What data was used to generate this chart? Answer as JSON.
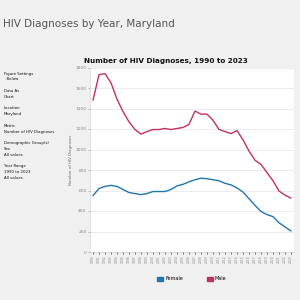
{
  "title_top": "HIV Diagnoses by Year, Maryland",
  "chart_title": "Number of HIV Diagnoses, 1990 to 2023",
  "ylabel": "Number of HIV Diagnoses",
  "years": [
    1990,
    1991,
    1992,
    1993,
    1994,
    1995,
    1996,
    1997,
    1998,
    1999,
    2000,
    2001,
    2002,
    2003,
    2004,
    2005,
    2006,
    2007,
    2008,
    2009,
    2010,
    2011,
    2012,
    2013,
    2014,
    2015,
    2016,
    2017,
    2018,
    2019,
    2020,
    2021,
    2022,
    2023
  ],
  "female_values": [
    550,
    620,
    640,
    650,
    640,
    610,
    580,
    570,
    560,
    570,
    590,
    590,
    590,
    610,
    645,
    660,
    685,
    705,
    720,
    715,
    705,
    695,
    670,
    655,
    625,
    585,
    520,
    455,
    395,
    365,
    345,
    285,
    245,
    205
  ],
  "male_values": [
    1480,
    1730,
    1740,
    1650,
    1490,
    1370,
    1270,
    1195,
    1150,
    1175,
    1195,
    1195,
    1205,
    1195,
    1205,
    1215,
    1245,
    1375,
    1345,
    1345,
    1285,
    1195,
    1175,
    1155,
    1185,
    1095,
    985,
    895,
    855,
    775,
    695,
    595,
    555,
    525
  ],
  "female_color": "#2176ae",
  "male_color": "#c0335e",
  "ylim": [
    0,
    1800
  ],
  "yticks": [
    0,
    200,
    400,
    600,
    800,
    1000,
    1200,
    1400,
    1600,
    1800
  ],
  "bg_page": "#f0f0f0",
  "bg_yellow": "#f5a800",
  "bg_plot": "#ffffff",
  "title_color": "#555555",
  "sidebar_text": "Figure Settings\n  Below\n\nData As\nChart\n\nLocation\nMaryland\n\nMetric\nNumber of HIV Diagnoses\n\nDemographic Group(s)\nSex\nAll values\n\nYear Range\n1990 to 2023\nAll values",
  "legend_female": "Female",
  "legend_male": "Male"
}
